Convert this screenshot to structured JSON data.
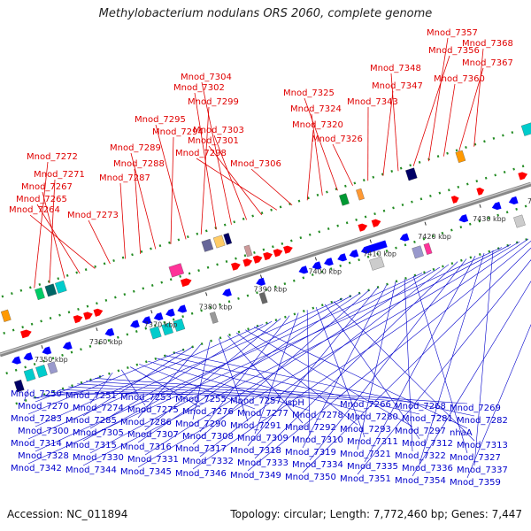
{
  "title": "Methylobacterium nodulans ORS 2060, complete genome",
  "footer": {
    "accession": "Accession: NC_011894",
    "summary": "Topology: circular; Length: 7,772,460 bp; Genes: 7,447"
  },
  "colors": {
    "top_label": "#e00000",
    "bottom_label": "#0000cc",
    "backbone": "#888888",
    "forward_gene": "#ff0000",
    "reverse_gene": "#0000ff",
    "track_dots": "#228b22"
  },
  "axis": {
    "tick_labels": [
      "7350 kbp",
      "7360 kbp",
      "7370 kbp",
      "7380 kbp",
      "7390 kbp",
      "7400 kbp",
      "7410 kbp",
      "7420 kbp",
      "7430 kbp",
      "7440 kbp"
    ]
  },
  "top_labels": [
    "Mnod_7272",
    "Mnod_7271",
    "Mnod_7267",
    "Mnod_7265",
    "Mnod_7264",
    "Mnod_7273",
    "Mnod_7287",
    "Mnod_7288",
    "Mnod_7289",
    "Mnod_7294",
    "Mnod_7295",
    "Mnod_7299",
    "Mnod_7302",
    "Mnod_7304",
    "Mnod_7303",
    "Mnod_7301",
    "Mnod_7298",
    "Mnod_7306",
    "Mnod_7320",
    "Mnod_7324",
    "Mnod_7325",
    "Mnod_7326",
    "Mnod_7343",
    "Mnod_7347",
    "Mnod_7348",
    "Mnod_7356",
    "Mnod_7357",
    "Mnod_7360",
    "Mnod_7367",
    "Mnod_7368"
  ],
  "bottom_labels": [
    "Mnod_7250",
    "Mnod_7251",
    "Mnod_7253",
    "Mnod_7255",
    "Mnod_7257",
    "ispH",
    "Mnod_7266",
    "Mnod_7268",
    "Mnod_7269",
    "Mnod_7270",
    "Mnod_7274",
    "Mnod_7275",
    "Mnod_7276",
    "Mnod_7277",
    "Mnod_7278",
    "Mnod_7280",
    "Mnod_7281",
    "Mnod_7282",
    "Mnod_7283",
    "Mnod_7285",
    "Mnod_7286",
    "Mnod_7290",
    "Mnod_7291",
    "Mnod_7292",
    "Mnod_7293",
    "Mnod_7297",
    "nhaA",
    "Mnod_7300",
    "Mnod_7305",
    "Mnod_7307",
    "Mnod_7308",
    "Mnod_7309",
    "Mnod_7310",
    "Mnod_7311",
    "Mnod_7312",
    "Mnod_7313",
    "Mnod_7314",
    "Mnod_7315",
    "Mnod_7316",
    "Mnod_7317",
    "Mnod_7318",
    "Mnod_7319",
    "Mnod_7321",
    "Mnod_7322",
    "Mnod_7327",
    "Mnod_7328",
    "Mnod_7330",
    "Mnod_7331",
    "Mnod_7332",
    "Mnod_7333",
    "Mnod_7334",
    "Mnod_7335",
    "Mnod_7336",
    "Mnod_7337",
    "Mnod_7342",
    "Mnod_7344",
    "Mnod_7345",
    "Mnod_7346",
    "Mnod_7349",
    "Mnod_7350",
    "Mnod_7351",
    "Mnod_7354",
    "Mnod_7359"
  ]
}
